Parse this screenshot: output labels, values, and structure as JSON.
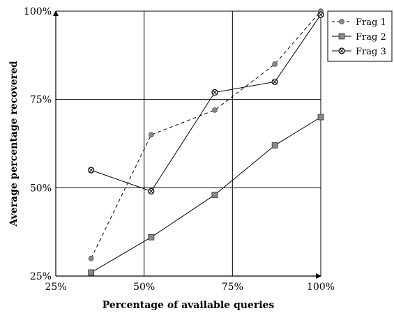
{
  "chart_data": {
    "type": "line",
    "title": "",
    "xlabel": "Percentage of available queries",
    "ylabel": "Average percentage recovered",
    "xlim": [
      25,
      100
    ],
    "ylim": [
      25,
      100
    ],
    "x_ticks": [
      25,
      50,
      75,
      100
    ],
    "y_ticks": [
      25,
      50,
      75,
      100
    ],
    "x_tick_labels": [
      "25%",
      "50%",
      "75%",
      "100%"
    ],
    "y_tick_labels": [
      "25%",
      "50%",
      "75%",
      "100%"
    ],
    "grid": true,
    "legend_position": "top-right",
    "series": [
      {
        "name": "Frag 1",
        "x": [
          35,
          52,
          70,
          87,
          100
        ],
        "y": [
          30,
          65,
          72,
          85,
          100
        ],
        "line_style": "dashed",
        "marker": "circle-filled-gray",
        "color": "#000000",
        "marker_color": "#888888"
      },
      {
        "name": "Frag 2",
        "x": [
          35,
          52,
          70,
          87,
          100
        ],
        "y": [
          26,
          36,
          48,
          62,
          70
        ],
        "line_style": "solid",
        "marker": "square-filled-gray",
        "color": "#000000",
        "marker_color": "#888888"
      },
      {
        "name": "Frag 3",
        "x": [
          35,
          52,
          70,
          87,
          100
        ],
        "y": [
          55,
          49,
          77,
          80,
          99
        ],
        "line_style": "solid",
        "marker": "circle-x",
        "color": "#000000",
        "marker_color": "#888888"
      }
    ]
  }
}
